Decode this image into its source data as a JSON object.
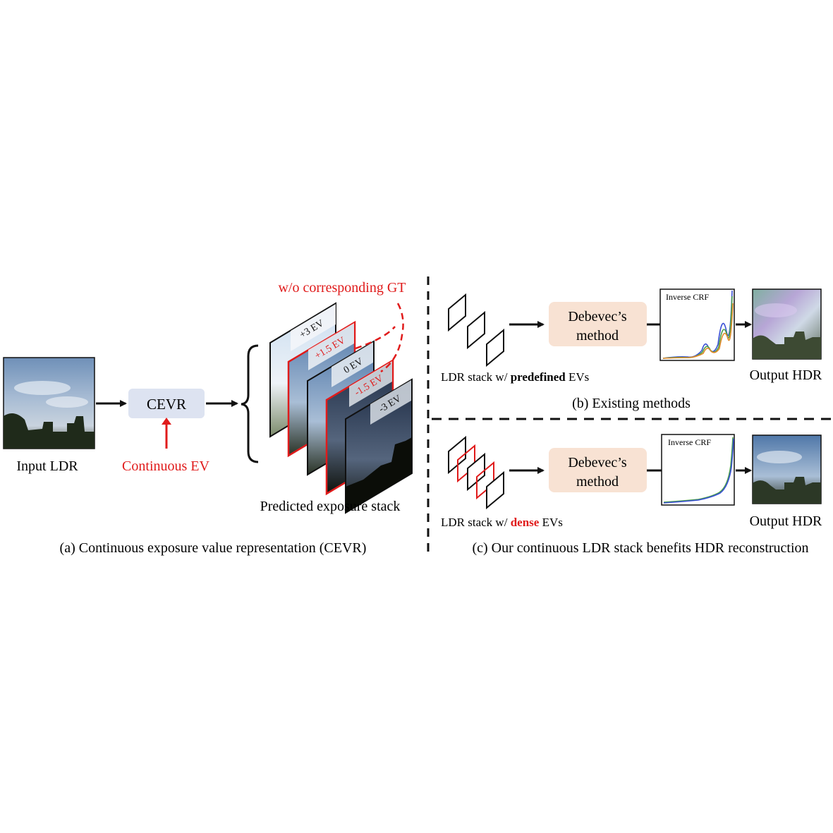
{
  "colors": {
    "red": "#e01b1b",
    "cevr_box": "#dde3f1",
    "debevec_box": "#f8e2d3",
    "black": "#111111",
    "curve_blue": "#3a4fd6",
    "curve_green": "#4aa04a",
    "curve_orange": "#e08a2a"
  },
  "panel_a": {
    "input_label": "Input LDR",
    "cevr_label": "CEVR",
    "continuous_label": "Continuous EV",
    "gt_label": "w/o corresponding GT",
    "stack_label": "Predicted exposure stack",
    "ev_labels": [
      "+3 EV",
      "+1.5 EV",
      "0 EV",
      "-1.5 EV",
      "-3 EV"
    ],
    "ev_highlighted": [
      false,
      true,
      false,
      true,
      false
    ],
    "caption": "(a) Continuous exposure value representation (CEVR)"
  },
  "panel_b": {
    "stack_prefix": "LDR stack w/ ",
    "stack_bold": "predefined",
    "stack_suffix": " EVs",
    "method_line1": "Debevec’s",
    "method_line2": "method",
    "crf_label": "Inverse CRF",
    "output_label": "Output HDR",
    "caption": "(b) Existing methods"
  },
  "panel_c": {
    "stack_prefix": "LDR stack w/ ",
    "stack_bold": "dense",
    "stack_suffix": " EVs",
    "method_line1": "Debevec’s",
    "method_line2": "method",
    "crf_label": "Inverse CRF",
    "output_label": "Output HDR",
    "caption": "(c) Our continuous LDR stack benefits HDR reconstruction"
  }
}
